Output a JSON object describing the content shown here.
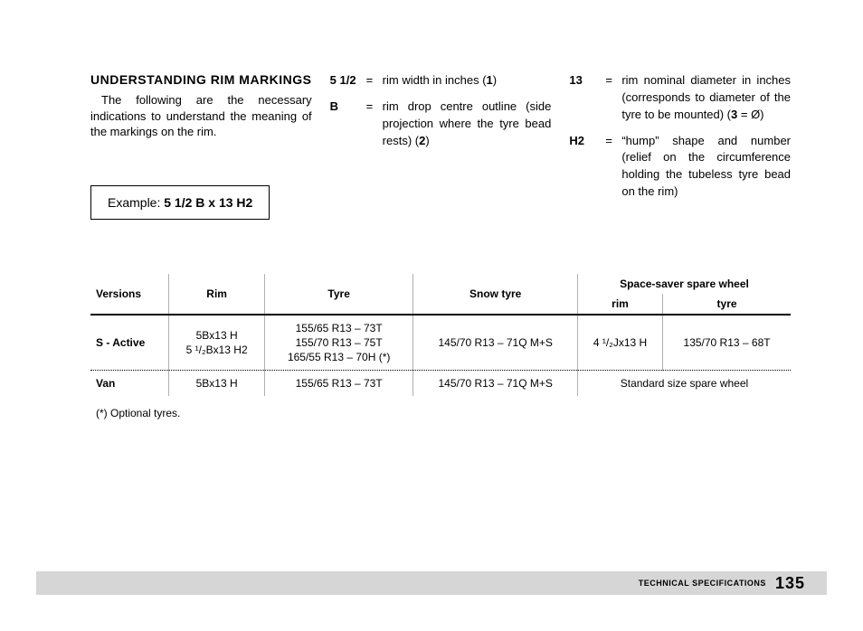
{
  "heading": "UNDERSTANDING RIM MARKINGS",
  "intro": "The following are the necessary indications to understand the meaning of the markings on the rim.",
  "example_label": "Example: ",
  "example_value": "5 1/2 B x 13 H2",
  "defs": {
    "col2": [
      {
        "key": "5 1/2",
        "eq": "=",
        "val": "rim width in inches (",
        "bold": "1",
        "val2": ")"
      },
      {
        "key": "B",
        "eq": "=",
        "val": "rim drop centre outline (side projection where the tyre bead rests) (",
        "bold": "2",
        "val2": ")"
      }
    ],
    "col3": [
      {
        "key": "13",
        "eq": "=",
        "val": "rim nominal diameter in inches (corresponds to diameter of the tyre to be mounted) (",
        "bold": "3",
        "val2": " = Ø)"
      },
      {
        "key": "H2",
        "eq": "=",
        "val": "“hump” shape and number (relief on the circumference holding the tubeless tyre bead on the rim)",
        "bold": "",
        "val2": ""
      }
    ]
  },
  "table": {
    "headers": {
      "versions": "Versions",
      "rim": "Rim",
      "tyre": "Tyre",
      "snow": "Snow tyre",
      "spare_group": "Space-saver spare wheel",
      "spare_rim": "rim",
      "spare_tyre": "tyre"
    },
    "rows": [
      {
        "label": "S - Active",
        "rim": "5Bx13 H\n5 ¹/₂Bx13 H2",
        "tyre": "155/65 R13 – 73T\n155/70 R13 – 75T\n165/55 R13 – 70H (*)",
        "snow": "145/70 R13 – 71Q M+S",
        "spare_rim": "4 ¹/₂Jx13 H",
        "spare_tyre": "135/70 R13 – 68T"
      },
      {
        "label": "Van",
        "rim": "5Bx13 H",
        "tyre": "155/65 R13 – 73T",
        "snow": "145/70 R13 – 71Q M+S",
        "spare_rim": "Standard size spare wheel",
        "spare_tyre": ""
      }
    ]
  },
  "footnote": "(*) Optional tyres.",
  "footer_label": "TECHNICAL SPECIFICATIONS",
  "page_number": "135"
}
